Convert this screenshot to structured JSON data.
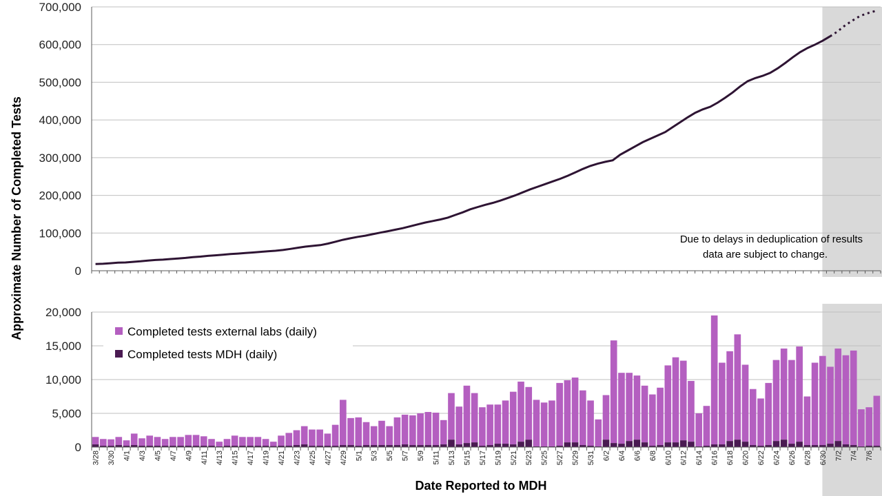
{
  "colors": {
    "line": "#2e1433",
    "external_bar": "#b45fc0",
    "mdh_bar": "#4a1a52",
    "gridline": "#bfbfbf",
    "shade": "#d9d9d9"
  },
  "y_axis_label": "Approximate Number of Completed Tests",
  "x_axis_label": "Date Reported to MDH",
  "note": {
    "line1": "Due to delays in deduplication of results",
    "line2": "data are subject to change."
  },
  "legend": {
    "external": "Completed tests external labs (daily)",
    "mdh": "Completed tests MDH (daily)"
  },
  "chart_data": [
    {
      "type": "line",
      "y_ticks": [
        "0",
        "100,000",
        "200,000",
        "300,000",
        "400,000",
        "500,000",
        "600,000",
        "700,000"
      ],
      "ylim": [
        0,
        700000
      ],
      "grid": true,
      "x_start": "3/28",
      "x_end": "7/7",
      "shaded_from": "7/1",
      "dotted_from": "7/1",
      "series": [
        {
          "values": [
            18000,
            18500,
            20000,
            21500,
            22000,
            23500,
            25000,
            27000,
            28500,
            29500,
            31000,
            32500,
            34000,
            36000,
            37500,
            39500,
            41000,
            42500,
            44500,
            45500,
            47000,
            48500,
            50000,
            51500,
            53000,
            55000,
            58000,
            61000,
            64000,
            66000,
            68000,
            72000,
            77000,
            82000,
            86000,
            90000,
            93000,
            97000,
            101000,
            105000,
            109000,
            113000,
            118000,
            123000,
            128000,
            132000,
            136000,
            141000,
            148000,
            155000,
            163000,
            169000,
            175000,
            180000,
            186000,
            193000,
            200000,
            208000,
            216000,
            223000,
            230000,
            237000,
            244000,
            252000,
            261000,
            270000,
            278000,
            284000,
            289000,
            293000,
            308000,
            319000,
            330000,
            341000,
            350000,
            359000,
            368000,
            381000,
            394000,
            407000,
            419000,
            428000,
            435000,
            446000,
            459000,
            473000,
            489000,
            503000,
            511000,
            517000,
            525000,
            537000,
            551000,
            566000,
            580000,
            591000,
            600000,
            610000,
            622000,
            635000,
            651000,
            664000,
            676000,
            683000,
            689000
          ]
        }
      ]
    },
    {
      "type": "bar",
      "stacked": true,
      "y_ticks": [
        "0",
        "5,000",
        "10,000",
        "15,000",
        "20,000"
      ],
      "ylim": [
        0,
        21000
      ],
      "grid": true,
      "categories": [
        "3/28",
        "3/29",
        "3/30",
        "3/31",
        "4/1",
        "4/2",
        "4/3",
        "4/4",
        "4/5",
        "4/6",
        "4/7",
        "4/8",
        "4/9",
        "4/10",
        "4/11",
        "4/12",
        "4/13",
        "4/14",
        "4/15",
        "4/16",
        "4/17",
        "4/18",
        "4/19",
        "4/20",
        "4/21",
        "4/22",
        "4/23",
        "4/24",
        "4/25",
        "4/26",
        "4/27",
        "4/28",
        "4/29",
        "4/30",
        "5/1",
        "5/2",
        "5/3",
        "5/4",
        "5/5",
        "5/6",
        "5/7",
        "5/8",
        "5/9",
        "5/10",
        "5/11",
        "5/12",
        "5/13",
        "5/14",
        "5/15",
        "5/16",
        "5/17",
        "5/18",
        "5/19",
        "5/20",
        "5/21",
        "5/22",
        "5/23",
        "5/24",
        "5/25",
        "5/26",
        "5/27",
        "5/28",
        "5/29",
        "5/30",
        "5/31",
        "6/1",
        "6/2",
        "6/3",
        "6/4",
        "6/5",
        "6/6",
        "6/7",
        "6/8",
        "6/9",
        "6/10",
        "6/11",
        "6/12",
        "6/13",
        "6/14",
        "6/15",
        "6/16",
        "6/17",
        "6/18",
        "6/19",
        "6/20",
        "6/21",
        "6/22",
        "6/23",
        "6/24",
        "6/25",
        "6/26",
        "6/27",
        "6/28",
        "6/29",
        "6/30",
        "7/1",
        "7/2",
        "7/3",
        "7/4",
        "7/5",
        "7/6",
        "7/7"
      ],
      "tick_every": 2,
      "series": [
        {
          "name": "Completed tests external labs (daily)",
          "values": [
            1100,
            1000,
            950,
            1200,
            800,
            1700,
            1100,
            1500,
            1300,
            1000,
            1300,
            1300,
            1600,
            1600,
            1400,
            1000,
            700,
            1000,
            1500,
            1300,
            1300,
            1300,
            1000,
            650,
            1500,
            1900,
            2200,
            2700,
            2400,
            2400,
            1800,
            3100,
            6700,
            4000,
            4200,
            3400,
            2800,
            3600,
            2800,
            4100,
            4400,
            4400,
            4700,
            4900,
            4800,
            3600,
            6900,
            5600,
            8500,
            7300,
            5700,
            6000,
            5800,
            6400,
            7800,
            8900,
            7800,
            6900,
            6500,
            6800,
            9300,
            9200,
            9600,
            8100,
            6700,
            4000,
            6600,
            15200,
            10500,
            10100,
            9500,
            8400,
            7600,
            8500,
            11400,
            12600,
            11800,
            9000,
            4900,
            5900,
            19100,
            12100,
            13300,
            15600,
            11400,
            8300,
            7000,
            9200,
            12000,
            13500,
            12400,
            14100,
            7200,
            12200,
            13200,
            11400,
            13700,
            13200,
            14000,
            5500,
            5700,
            7400
          ]
        },
        {
          "name": "Completed tests MDH (daily)",
          "values": [
            400,
            200,
            200,
            300,
            200,
            300,
            200,
            200,
            200,
            200,
            200,
            200,
            200,
            200,
            200,
            200,
            100,
            200,
            200,
            200,
            200,
            200,
            200,
            150,
            200,
            200,
            300,
            400,
            200,
            200,
            200,
            200,
            300,
            300,
            200,
            300,
            300,
            300,
            300,
            300,
            400,
            300,
            300,
            300,
            300,
            400,
            1100,
            400,
            600,
            700,
            200,
            300,
            500,
            500,
            400,
            800,
            1100,
            100,
            100,
            100,
            200,
            700,
            700,
            300,
            200,
            100,
            1100,
            600,
            500,
            900,
            1100,
            700,
            200,
            300,
            700,
            700,
            1000,
            800,
            100,
            200,
            400,
            400,
            900,
            1100,
            800,
            300,
            200,
            300,
            900,
            1100,
            500,
            800,
            300,
            300,
            300,
            500,
            900,
            400,
            300,
            100,
            200,
            200
          ]
        }
      ]
    }
  ]
}
